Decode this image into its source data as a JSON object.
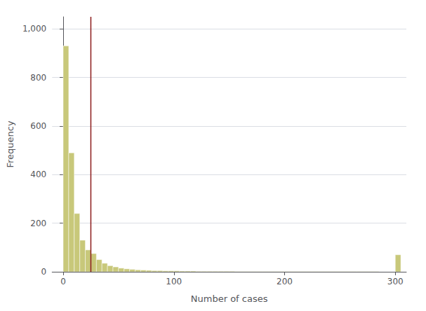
{
  "chart_data": {
    "type": "histogram",
    "xlabel": "Number of cases",
    "ylabel": "Frequency",
    "color": "#c8c87a",
    "reference_line": {
      "x": 25,
      "color": "#8b1a1a"
    },
    "xlim": [
      -10,
      310
    ],
    "ylim": [
      0,
      1050
    ],
    "xticks": [
      0,
      100,
      200,
      300
    ],
    "yticks": [
      0,
      200,
      400,
      600,
      800,
      1000
    ],
    "grid": true,
    "bins": [
      -10,
      -5,
      0,
      5,
      10,
      15,
      20,
      25,
      30,
      35,
      40,
      45,
      50,
      55,
      60,
      65,
      70,
      75,
      80,
      85,
      90,
      95,
      100,
      105,
      110,
      115,
      120,
      125,
      130,
      135,
      140,
      145,
      150,
      155,
      160,
      165,
      170,
      175,
      180,
      185,
      190,
      195,
      200,
      205,
      210,
      215,
      220,
      225,
      230,
      235,
      240,
      245,
      250,
      255,
      260,
      265,
      270,
      275,
      280,
      285,
      290,
      295,
      300,
      305
    ],
    "values": [
      0,
      0,
      930,
      490,
      240,
      130,
      90,
      75,
      50,
      35,
      25,
      20,
      15,
      12,
      10,
      8,
      7,
      6,
      5,
      5,
      4,
      4,
      4,
      3,
      3,
      3,
      2,
      2,
      2,
      2,
      2,
      2,
      2,
      1,
      1,
      1,
      1,
      1,
      1,
      1,
      1,
      1,
      1,
      1,
      1,
      1,
      1,
      1,
      1,
      1,
      1,
      1,
      1,
      1,
      1,
      1,
      1,
      1,
      1,
      0,
      0,
      0,
      70
    ]
  }
}
